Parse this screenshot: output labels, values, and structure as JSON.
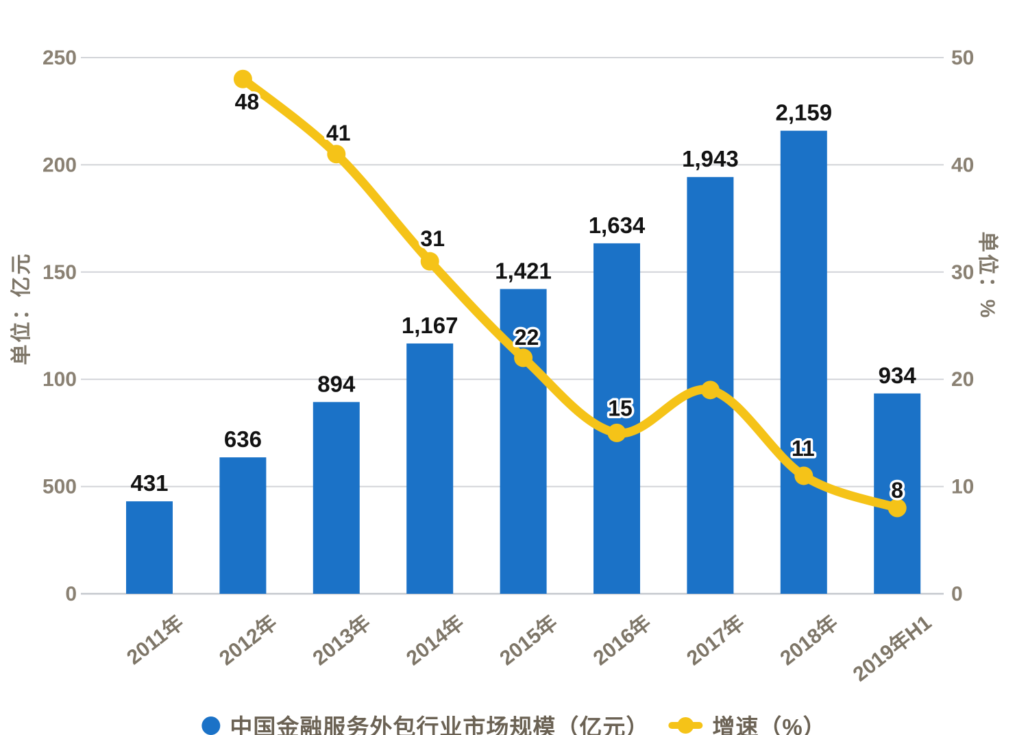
{
  "chart_data": {
    "type": "combo-bar-line",
    "categories": [
      "2011年",
      "2012年",
      "2013年",
      "2014年",
      "2015年",
      "2016年",
      "2017年",
      "2018年",
      "2019年H1"
    ],
    "series": [
      {
        "name": "中国金融服务外包行业市场规模（亿元）",
        "type": "bar",
        "axis": "left",
        "values": [
          431,
          636,
          894,
          1167,
          1421,
          1634,
          1943,
          2159,
          934
        ],
        "data_labels": [
          "431",
          "636",
          "894",
          "1,167",
          "1,421",
          "1,634",
          "1,943",
          "2,159",
          "934"
        ]
      },
      {
        "name": "增速（%）",
        "type": "line",
        "axis": "right",
        "values": [
          null,
          48,
          41,
          31,
          22,
          15,
          19,
          11,
          8
        ],
        "data_labels": [
          null,
          "48",
          "41",
          "31",
          "22",
          "15",
          null,
          "11",
          "8"
        ]
      }
    ],
    "left_axis": {
      "title": "单位：亿元",
      "range": [
        0,
        250
      ],
      "tick_labels_bottom_to_top": [
        "0",
        "500",
        "100",
        "150",
        "200",
        "250"
      ]
    },
    "right_axis": {
      "title": "单位：%",
      "range": [
        0,
        50
      ],
      "tick_labels_bottom_to_top": [
        "0",
        "10",
        "20",
        "30",
        "40",
        "50"
      ]
    },
    "grid": true,
    "legend_position": "bottom"
  },
  "axes": {
    "left_title": "单位：亿元",
    "right_title": "单位：%"
  },
  "legend": {
    "bar": "中国金融服务外包行业市场规模（亿元）",
    "line": "增速（%）"
  },
  "colors": {
    "bar": "#1b72c7",
    "line": "#f5c318",
    "grid": "#d2d4d8",
    "baseline": "#c5c8cd",
    "axis_text": "#8a8173",
    "x_label_text": "#7e7668",
    "data_label_text": "#121212",
    "legend_text": "#6b6254"
  }
}
